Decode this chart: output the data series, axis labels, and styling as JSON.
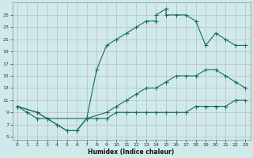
{
  "xlabel": "Humidex (Indice chaleur)",
  "bg_color": "#ceeaea",
  "grid_color": "#b8d8d8",
  "line_color": "#1a6b5a",
  "xlim": [
    -0.5,
    23.5
  ],
  "ylim": [
    4.5,
    27
  ],
  "xticks": [
    0,
    1,
    2,
    3,
    4,
    5,
    6,
    7,
    8,
    9,
    10,
    11,
    12,
    13,
    14,
    15,
    16,
    17,
    18,
    19,
    20,
    21,
    22,
    23
  ],
  "yticks": [
    5,
    7,
    9,
    11,
    13,
    15,
    17,
    19,
    21,
    23,
    25
  ],
  "curve_top_x": [
    0,
    2,
    3,
    4,
    5,
    6,
    7,
    8,
    9,
    10,
    11,
    12,
    13,
    14,
    14,
    15,
    15,
    16,
    17,
    18,
    19,
    20,
    21,
    22,
    23
  ],
  "curve_top_y": [
    10,
    9,
    8,
    7,
    6,
    6,
    8,
    16,
    20,
    21,
    22,
    23,
    24,
    24,
    25,
    26,
    25,
    25,
    25,
    24,
    20,
    22,
    21,
    20,
    20
  ],
  "curve_mid_x": [
    0,
    2,
    3,
    7,
    9,
    10,
    11,
    12,
    13,
    14,
    15,
    16,
    17,
    18,
    19,
    20,
    21,
    22,
    23
  ],
  "curve_mid_y": [
    10,
    9,
    8,
    8,
    9,
    10,
    11,
    12,
    13,
    13,
    14,
    15,
    15,
    15,
    16,
    16,
    15,
    14,
    13
  ],
  "curve_bot_x": [
    0,
    1,
    2,
    3,
    4,
    5,
    6,
    7,
    8,
    9,
    10,
    11,
    12,
    13,
    14,
    15,
    16,
    17,
    18,
    19,
    20,
    21,
    22,
    23
  ],
  "curve_bot_y": [
    10,
    9,
    8,
    8,
    7,
    6,
    6,
    8,
    8,
    8,
    9,
    9,
    9,
    9,
    9,
    9,
    9,
    9,
    10,
    10,
    10,
    10,
    11,
    11
  ]
}
